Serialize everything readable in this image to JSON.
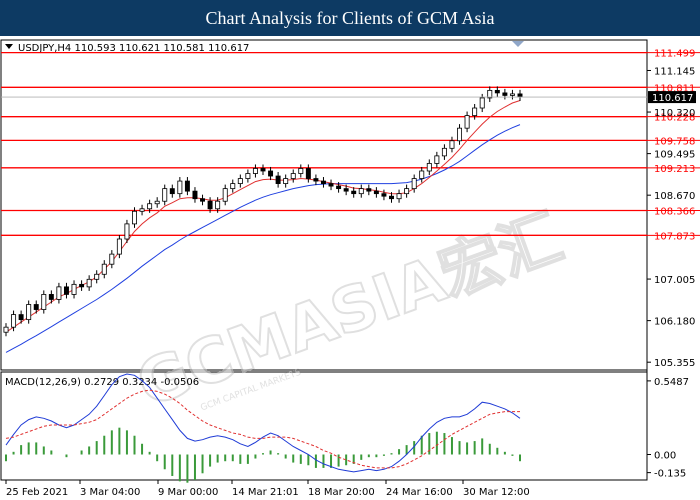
{
  "banner": {
    "title": "Chart Analysis for Clients of GCM Asia"
  },
  "colors": {
    "banner_bg": "#0d3a63",
    "level_line": "#ff0000",
    "ma_fast": "#e03030",
    "ma_slow": "#2040e0",
    "macd_line": "#1f3bd6",
    "signal_line": "#e03030",
    "histogram": "#3a9a3a",
    "candle": "#000000",
    "current_price_bg": "#000000"
  },
  "watermark": {
    "text": "GCMASIA宏汇",
    "subtext": "GCM CAPITAL MARKETS"
  },
  "chart_data": [
    {
      "type": "candlestick",
      "symbol_header": "USDJPY,H4  110.593 110.621 110.581 110.617",
      "x_tick_labels": [
        "25 Feb 2021",
        "3 Mar 04:00",
        "9 Mar 00:00",
        "14 Mar 21:01",
        "18 Mar 20:00",
        "24 Mar 16:00",
        "30 Mar 12:00"
      ],
      "y_tick_labels": [
        "111.145",
        "110.320",
        "109.495",
        "108.670",
        "107.005",
        "106.180",
        "105.355"
      ],
      "ylim": [
        105.2,
        111.75
      ],
      "levels": [
        {
          "value": 111.499,
          "label": "111.499"
        },
        {
          "value": 110.811,
          "label": "110.811"
        },
        {
          "value": 110.228,
          "label": "110.228"
        },
        {
          "value": 109.758,
          "label": "109.758"
        },
        {
          "value": 109.213,
          "label": "109.213"
        },
        {
          "value": 108.366,
          "label": "108.366"
        },
        {
          "value": 107.873,
          "label": "107.873"
        }
      ],
      "current_price": {
        "value": 110.617,
        "label": "110.617"
      },
      "close": [
        106.05,
        106.3,
        106.2,
        106.5,
        106.4,
        106.7,
        106.6,
        106.85,
        106.7,
        106.9,
        106.85,
        107.0,
        107.1,
        107.3,
        107.5,
        107.8,
        108.1,
        108.35,
        108.4,
        108.5,
        108.55,
        108.8,
        108.7,
        108.95,
        108.75,
        108.6,
        108.55,
        108.4,
        108.55,
        108.8,
        108.9,
        109.0,
        109.1,
        109.2,
        109.15,
        109.05,
        108.9,
        109.0,
        109.1,
        109.2,
        109.0,
        108.95,
        108.9,
        108.85,
        108.8,
        108.75,
        108.7,
        108.8,
        108.75,
        108.7,
        108.65,
        108.6,
        108.7,
        108.8,
        109.0,
        109.15,
        109.3,
        109.45,
        109.6,
        109.75,
        110.0,
        110.25,
        110.4,
        110.6,
        110.75,
        110.7,
        110.65,
        110.68,
        110.62
      ],
      "ma_fast": [
        105.95,
        106.05,
        106.15,
        106.25,
        106.35,
        106.45,
        106.55,
        106.65,
        106.72,
        106.8,
        106.88,
        106.95,
        107.05,
        107.2,
        107.35,
        107.55,
        107.75,
        107.95,
        108.1,
        108.22,
        108.32,
        108.45,
        108.52,
        108.6,
        108.62,
        108.62,
        108.6,
        108.57,
        108.57,
        108.62,
        108.7,
        108.78,
        108.86,
        108.94,
        108.98,
        108.99,
        108.97,
        108.97,
        108.98,
        109.0,
        108.99,
        108.97,
        108.94,
        108.91,
        108.88,
        108.85,
        108.81,
        108.8,
        108.78,
        108.76,
        108.73,
        108.7,
        108.7,
        108.72,
        108.8,
        108.9,
        109.02,
        109.15,
        109.28,
        109.42,
        109.58,
        109.76,
        109.92,
        110.08,
        110.22,
        110.33,
        110.42,
        110.5,
        110.55
      ],
      "ma_slow": [
        105.55,
        105.63,
        105.71,
        105.8,
        105.88,
        105.97,
        106.06,
        106.15,
        106.24,
        106.33,
        106.42,
        106.51,
        106.6,
        106.7,
        106.8,
        106.91,
        107.02,
        107.14,
        107.26,
        107.37,
        107.48,
        107.59,
        107.68,
        107.78,
        107.87,
        107.95,
        108.03,
        108.11,
        108.19,
        108.27,
        108.35,
        108.43,
        108.5,
        108.57,
        108.63,
        108.68,
        108.72,
        108.76,
        108.8,
        108.83,
        108.86,
        108.88,
        108.89,
        108.9,
        108.9,
        108.9,
        108.9,
        108.9,
        108.9,
        108.9,
        108.9,
        108.9,
        108.91,
        108.92,
        108.95,
        108.99,
        109.04,
        109.1,
        109.17,
        109.25,
        109.34,
        109.45,
        109.56,
        109.67,
        109.77,
        109.86,
        109.94,
        110.01,
        110.07
      ]
    },
    {
      "type": "macd",
      "header": "MACD(12,26,9) 0.2729 0.3234 -0.0506",
      "y_tick_labels": [
        "0.5487",
        "0.00",
        "-0.135"
      ],
      "ylim": [
        -0.19,
        0.6
      ],
      "macd": [
        0.07,
        0.15,
        0.22,
        0.26,
        0.28,
        0.27,
        0.25,
        0.22,
        0.2,
        0.22,
        0.26,
        0.3,
        0.36,
        0.44,
        0.52,
        0.58,
        0.6,
        0.59,
        0.55,
        0.5,
        0.42,
        0.34,
        0.26,
        0.18,
        0.12,
        0.1,
        0.11,
        0.13,
        0.14,
        0.13,
        0.11,
        0.08,
        0.06,
        0.09,
        0.13,
        0.16,
        0.14,
        0.1,
        0.06,
        0.03,
        0.0,
        -0.04,
        -0.07,
        -0.09,
        -0.11,
        -0.12,
        -0.13,
        -0.12,
        -0.11,
        -0.12,
        -0.11,
        -0.09,
        -0.05,
        0.0,
        0.06,
        0.13,
        0.19,
        0.24,
        0.27,
        0.28,
        0.28,
        0.3,
        0.34,
        0.39,
        0.38,
        0.36,
        0.34,
        0.31,
        0.27
      ],
      "signal": [
        0.12,
        0.13,
        0.15,
        0.17,
        0.19,
        0.21,
        0.22,
        0.22,
        0.22,
        0.22,
        0.23,
        0.24,
        0.26,
        0.3,
        0.34,
        0.38,
        0.42,
        0.45,
        0.47,
        0.48,
        0.47,
        0.45,
        0.42,
        0.38,
        0.33,
        0.29,
        0.25,
        0.22,
        0.2,
        0.18,
        0.16,
        0.15,
        0.13,
        0.12,
        0.12,
        0.13,
        0.13,
        0.13,
        0.12,
        0.1,
        0.08,
        0.06,
        0.03,
        0.01,
        -0.02,
        -0.04,
        -0.06,
        -0.08,
        -0.09,
        -0.1,
        -0.1,
        -0.1,
        -0.09,
        -0.07,
        -0.04,
        -0.01,
        0.03,
        0.07,
        0.11,
        0.15,
        0.18,
        0.21,
        0.24,
        0.27,
        0.3,
        0.31,
        0.32,
        0.32,
        0.32
      ]
    }
  ]
}
